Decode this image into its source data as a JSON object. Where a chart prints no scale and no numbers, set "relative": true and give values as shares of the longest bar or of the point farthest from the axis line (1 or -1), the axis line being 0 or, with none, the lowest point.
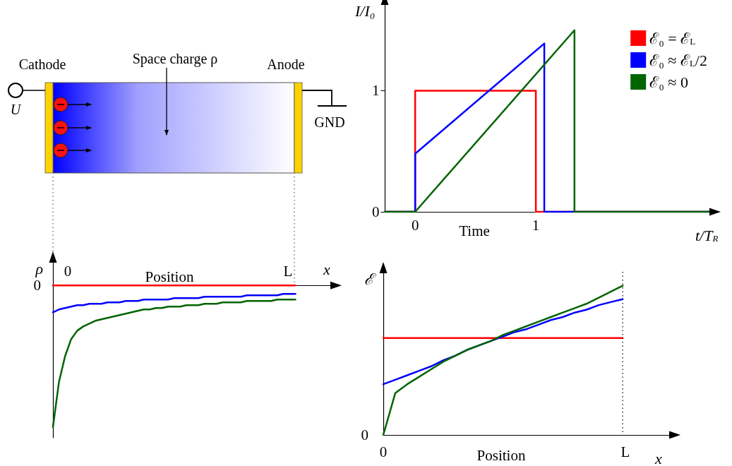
{
  "chart_data": [
    {
      "type": "other",
      "annotations": [
        "Cathode",
        "Space charge ρ",
        "Anode",
        "U",
        "GND"
      ]
    },
    {
      "type": "line",
      "ylabel": "I/I₀",
      "xlabel": "t/T$_{R}$",
      "annotations": [
        "Time"
      ],
      "xlim": [
        -0.25,
        2.45
      ],
      "ylim": [
        0,
        1.72
      ],
      "xticks": [
        0,
        1
      ],
      "yticks": [
        0,
        1
      ],
      "legend": "top right",
      "series": [
        {
          "name": "ℰ₀ = ℰ$_{L}$",
          "color": "#ff0000",
          "x": [
            -0.25,
            0,
            0,
            1,
            1,
            2.45
          ],
          "values": [
            0,
            0,
            1,
            1,
            0,
            0
          ]
        },
        {
          "name": "ℰ₀ ≈ ℰ$_{L}$/2",
          "color": "#0000ff",
          "x": [
            -0.25,
            0,
            0,
            1.07,
            1.07,
            2.45
          ],
          "values": [
            0,
            0,
            0.48,
            1.39,
            0,
            0
          ]
        },
        {
          "name": "ℰ₀ ≈ 0",
          "color": "#006400",
          "x": [
            -0.25,
            0,
            1.32,
            1.32,
            2.45
          ],
          "values": [
            0,
            0,
            1.5,
            0,
            0
          ]
        }
      ]
    },
    {
      "type": "line",
      "relative": true,
      "ylabel": "ρ",
      "xlabel": "x",
      "annotations": [
        "Position",
        "0",
        "0",
        "L"
      ],
      "categories": [
        null,
        null,
        null,
        null,
        null,
        null,
        null,
        null,
        null,
        null,
        null,
        null,
        null,
        null,
        null,
        null,
        null,
        null,
        null,
        null,
        null,
        null,
        null,
        null,
        null,
        null,
        null,
        null,
        null,
        null,
        null,
        null,
        null,
        null,
        null,
        null,
        null,
        null,
        null,
        null,
        null
      ],
      "series": [
        {
          "color": "#ff0000",
          "values": [
            0,
            0,
            0,
            0,
            0,
            0,
            0,
            0,
            0,
            0,
            0,
            0,
            0,
            0,
            0,
            0,
            0,
            0,
            0,
            0,
            0,
            0,
            0,
            0,
            0,
            0,
            0,
            0,
            0,
            0,
            0,
            0,
            0,
            0,
            0,
            0,
            0,
            0,
            0,
            0,
            0
          ]
        },
        {
          "color": "#0000ff",
          "values": [
            -0.19,
            -0.17,
            -0.16,
            -0.15,
            -0.14,
            -0.14,
            -0.13,
            -0.13,
            -0.13,
            -0.12,
            -0.12,
            -0.12,
            -0.11,
            -0.11,
            -0.11,
            -0.1,
            -0.1,
            -0.1,
            -0.1,
            -0.1,
            -0.09,
            -0.09,
            -0.09,
            -0.09,
            -0.09,
            -0.08,
            -0.08,
            -0.08,
            -0.08,
            -0.08,
            -0.08,
            -0.08,
            -0.07,
            -0.07,
            -0.07,
            -0.07,
            -0.07,
            -0.07,
            -0.06,
            -0.06,
            -0.06
          ]
        },
        {
          "color": "#006400",
          "values": [
            -1,
            -0.68,
            -0.5,
            -0.38,
            -0.32,
            -0.29,
            -0.27,
            -0.25,
            -0.24,
            -0.23,
            -0.22,
            -0.21,
            -0.2,
            -0.19,
            -0.18,
            -0.17,
            -0.17,
            -0.16,
            -0.16,
            -0.15,
            -0.15,
            -0.15,
            -0.14,
            -0.14,
            -0.14,
            -0.13,
            -0.13,
            -0.13,
            -0.12,
            -0.12,
            -0.12,
            -0.12,
            -0.11,
            -0.11,
            -0.11,
            -0.11,
            -0.11,
            -0.1,
            -0.1,
            -0.1,
            -0.1
          ]
        }
      ]
    },
    {
      "type": "line",
      "relative": true,
      "ylabel": "ℰ",
      "xlabel": "x",
      "annotations": [
        "Position",
        "0",
        "0",
        "L"
      ],
      "categories": [
        null,
        null,
        null,
        null,
        null,
        null,
        null,
        null,
        null,
        null,
        null,
        null,
        null,
        null,
        null,
        null,
        null,
        null,
        null,
        null,
        null
      ],
      "series": [
        {
          "color": "#ff0000",
          "values": [
            0.65,
            0.65,
            0.65,
            0.65,
            0.65,
            0.65,
            0.65,
            0.65,
            0.65,
            0.65,
            0.65,
            0.65,
            0.65,
            0.65,
            0.65,
            0.65,
            0.65,
            0.65,
            0.65,
            0.65,
            0.65
          ]
        },
        {
          "color": "#0000ff",
          "values": [
            0.34,
            0.37,
            0.4,
            0.43,
            0.46,
            0.5,
            0.53,
            0.57,
            0.6,
            0.63,
            0.66,
            0.69,
            0.71,
            0.74,
            0.77,
            0.79,
            0.82,
            0.84,
            0.87,
            0.89,
            0.91
          ]
        },
        {
          "color": "#006400",
          "values": [
            0,
            0.28,
            0.34,
            0.39,
            0.44,
            0.49,
            0.53,
            0.57,
            0.6,
            0.63,
            0.67,
            0.7,
            0.73,
            0.76,
            0.79,
            0.82,
            0.85,
            0.88,
            0.92,
            0.96,
            1
          ]
        }
      ]
    }
  ]
}
